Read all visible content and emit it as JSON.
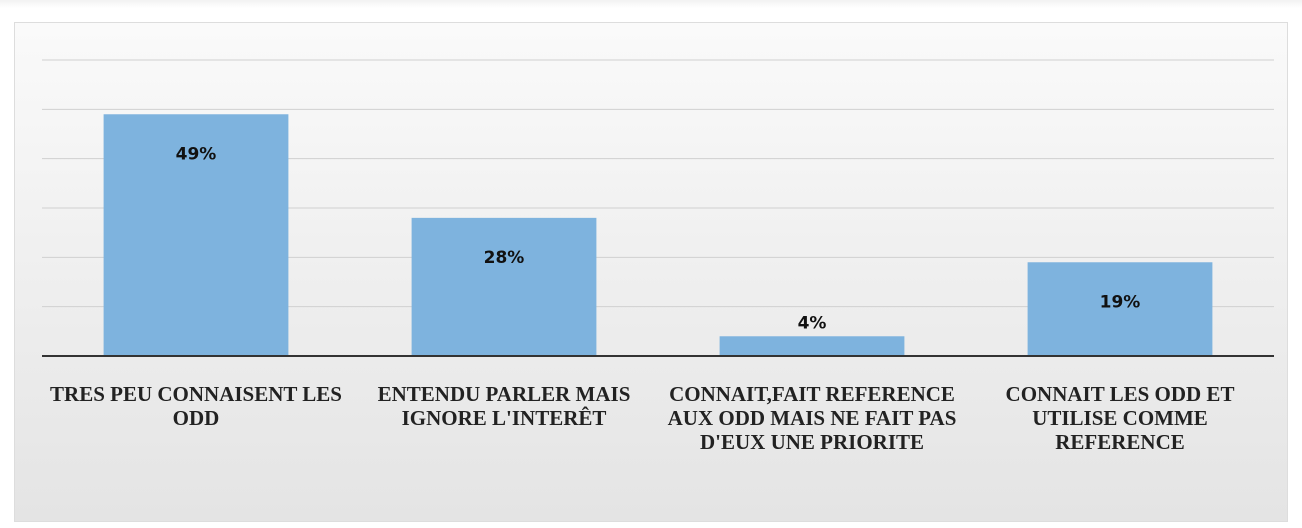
{
  "chart_data": {
    "type": "bar",
    "categories": [
      "TRES PEU CONNAISENT LES ODD",
      "ENTENDU PARLER MAIS IGNORE L'INTERÊT",
      "CONNAIT,FAIT REFERENCE AUX ODD MAIS NE FAIT PAS D'EUX UNE PRIORITE",
      "CONNAIT LES ODD ET UTILISE COMME REFERENCE"
    ],
    "values": [
      49,
      28,
      4,
      19
    ],
    "value_labels": [
      "49%",
      "28%",
      "4%",
      "19%"
    ],
    "color": "#7eb3de",
    "ylim": [
      0,
      60
    ],
    "yticks": [
      0,
      10,
      20,
      30,
      40,
      50,
      60
    ],
    "grid": true
  }
}
